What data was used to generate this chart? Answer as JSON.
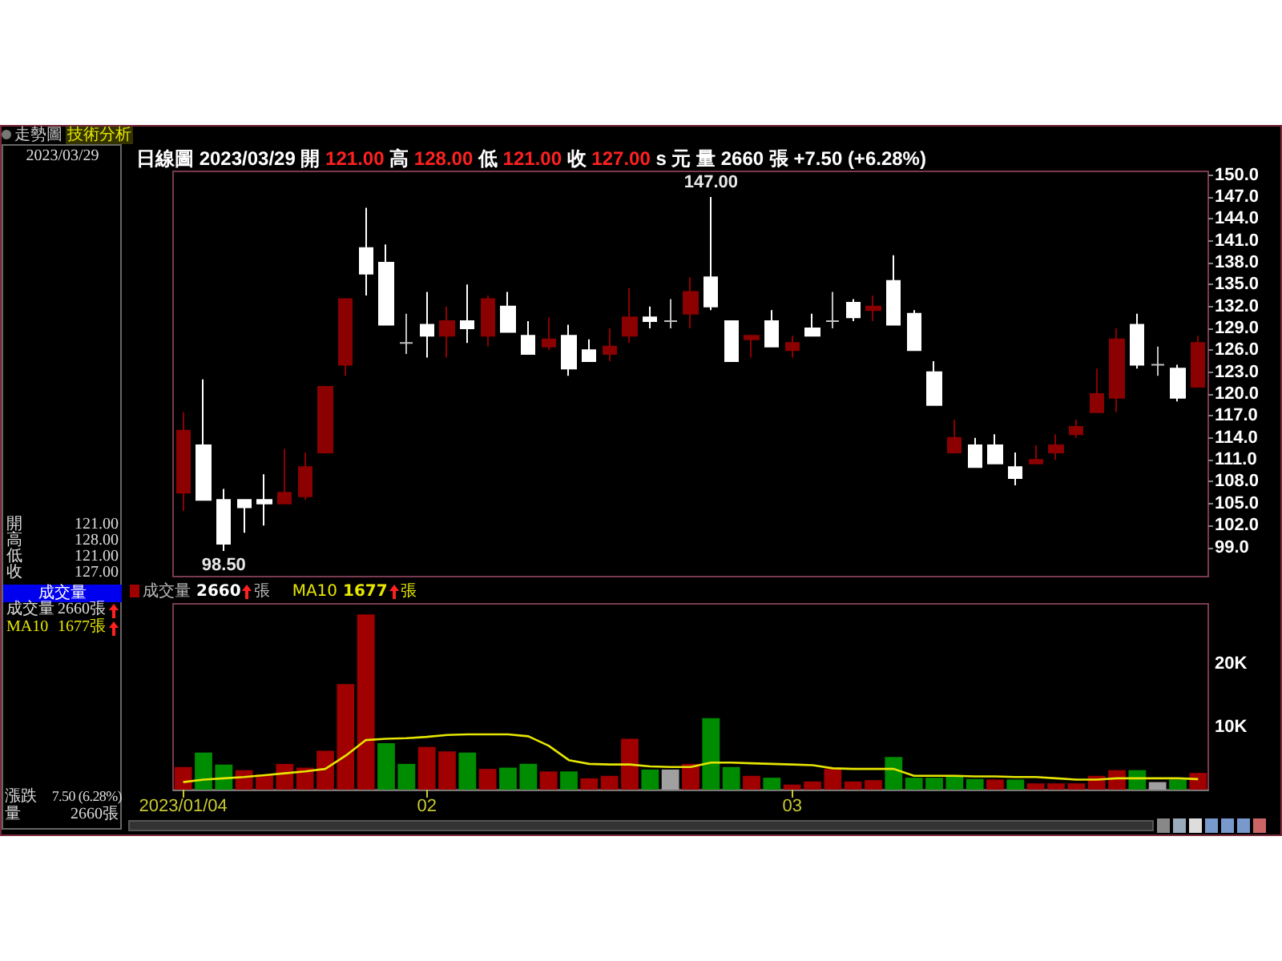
{
  "chart_data": [
    {
      "type": "candlestick",
      "title": "日線圖 2023/03/29 開 121.00 高 128.00 低 121.00 收 127.00 s 元 量 2660 張 +7.50 (+6.28%)",
      "categories": [
        "2023/01/04",
        null,
        null,
        null,
        null,
        null,
        null,
        null,
        null,
        null,
        null,
        null,
        "02",
        null,
        null,
        null,
        null,
        null,
        null,
        null,
        null,
        null,
        null,
        null,
        null,
        null,
        null,
        null,
        null,
        null,
        "03",
        null,
        null,
        null,
        null,
        null,
        null,
        null,
        null,
        null,
        null,
        null,
        null,
        null,
        null,
        null,
        null,
        null,
        null,
        null,
        null
      ],
      "ohlc": [
        [
          106.5,
          117.5,
          104,
          115
        ],
        [
          113,
          122,
          105.5,
          105.5
        ],
        [
          105.5,
          107,
          98.5,
          99.5
        ],
        [
          105.5,
          105.5,
          101,
          104.5
        ],
        [
          105.5,
          109,
          102,
          105
        ],
        [
          105,
          112.5,
          105,
          106.5
        ],
        [
          106,
          112,
          105.5,
          110
        ],
        [
          112,
          121,
          112,
          121
        ],
        [
          124,
          133,
          122.5,
          133
        ],
        [
          140,
          145.5,
          133.5,
          136.5
        ],
        [
          138,
          140.5,
          129.5,
          129.5
        ],
        [
          127,
          131,
          125.5,
          127
        ],
        [
          129.5,
          134,
          125,
          128
        ],
        [
          128,
          132,
          125,
          130
        ],
        [
          130,
          135,
          127,
          129
        ],
        [
          128,
          133.5,
          126.5,
          133
        ],
        [
          132,
          134,
          128.5,
          128.5
        ],
        [
          128,
          130,
          125.5,
          125.5
        ],
        [
          126.5,
          130.5,
          126,
          127.5
        ],
        [
          128,
          129.5,
          122.5,
          123.5
        ],
        [
          126,
          127.5,
          124.5,
          124.5
        ],
        [
          125.5,
          129,
          124.5,
          126.5
        ],
        [
          128,
          134.5,
          127,
          130.5
        ],
        [
          130.5,
          132,
          129,
          130
        ],
        [
          130,
          133,
          129,
          130
        ],
        [
          131,
          136,
          129,
          134
        ],
        [
          136,
          147,
          131.5,
          132
        ],
        [
          130,
          130,
          124.5,
          124.5
        ],
        [
          127.5,
          128,
          125,
          128
        ],
        [
          130,
          131.5,
          126.5,
          126.5
        ],
        [
          126,
          128,
          125,
          127
        ],
        [
          129,
          131,
          128,
          128
        ],
        [
          130,
          134,
          129,
          130
        ],
        [
          132.5,
          133,
          130,
          130.5
        ],
        [
          131.5,
          133.5,
          130,
          132
        ],
        [
          135.5,
          139,
          129.5,
          129.5
        ],
        [
          131,
          131.5,
          126,
          126
        ],
        [
          123,
          124.5,
          118.5,
          118.5
        ],
        [
          112,
          116.5,
          112,
          114
        ],
        [
          113,
          114,
          110,
          110
        ],
        [
          113,
          114.5,
          110.5,
          110.5
        ],
        [
          110,
          112,
          107.5,
          108.5
        ],
        [
          110.5,
          113,
          110.5,
          111
        ],
        [
          112,
          114.5,
          111,
          113
        ],
        [
          114.5,
          116.5,
          114,
          115.5
        ],
        [
          117.5,
          123.5,
          117.5,
          120
        ],
        [
          119.5,
          129,
          117.5,
          127.5
        ],
        [
          129.5,
          131,
          123.5,
          124
        ],
        [
          124,
          126.5,
          122.5,
          124
        ],
        [
          123.5,
          124,
          119,
          119.5
        ],
        [
          121,
          128,
          121,
          127
        ]
      ],
      "colors": [
        "#8b0000",
        "#ffffff",
        "#ffffff",
        "#ffffff",
        "#ffffff",
        "#8b0000",
        "#8b0000",
        "#8b0000",
        "#8b0000",
        "#ffffff",
        "#ffffff",
        "#c0c0c0",
        "#ffffff",
        "#8b0000",
        "#ffffff",
        "#8b0000",
        "#ffffff",
        "#ffffff",
        "#8b0000",
        "#ffffff",
        "#ffffff",
        "#8b0000",
        "#8b0000",
        "#ffffff",
        "#c0c0c0",
        "#8b0000",
        "#ffffff",
        "#ffffff",
        "#8b0000",
        "#ffffff",
        "#8b0000",
        "#ffffff",
        "#c0c0c0",
        "#ffffff",
        "#8b0000",
        "#ffffff",
        "#ffffff",
        "#ffffff",
        "#8b0000",
        "#ffffff",
        "#ffffff",
        "#ffffff",
        "#8b0000",
        "#8b0000",
        "#8b0000",
        "#8b0000",
        "#8b0000",
        "#ffffff",
        "#c0c0c0",
        "#ffffff",
        "#8b0000"
      ],
      "ylim": [
        95,
        150.5
      ],
      "yticks": [
        {
          "value": 150,
          "label": "150.0"
        },
        {
          "value": 147,
          "label": "147.0"
        },
        {
          "value": 144,
          "label": "144.0"
        },
        {
          "value": 141,
          "label": "141.0"
        },
        {
          "value": 138,
          "label": "138.0"
        },
        {
          "value": 135,
          "label": "135.0"
        },
        {
          "value": 132,
          "label": "132.0"
        },
        {
          "value": 129,
          "label": "129.0"
        },
        {
          "value": 126,
          "label": "126.0"
        },
        {
          "value": 123,
          "label": "123.0"
        },
        {
          "value": 120,
          "label": "120.0"
        },
        {
          "value": 117,
          "label": "117.0"
        },
        {
          "value": 114,
          "label": "114.0"
        },
        {
          "value": 111,
          "label": "111.0"
        },
        {
          "value": 108,
          "label": "108.0"
        },
        {
          "value": 105,
          "label": "105.0"
        },
        {
          "value": 102,
          "label": "102.0"
        },
        {
          "value": 99,
          "label": "99.0"
        }
      ],
      "tick_labels": "y",
      "annotations": [
        {
          "text": "147.00",
          "y": 147
        },
        {
          "text": "98.50",
          "y": 98.5
        }
      ]
    },
    {
      "type": "bar",
      "categories": [
        "2023/01/04",
        null,
        null,
        null,
        null,
        null,
        null,
        null,
        null,
        null,
        null,
        null,
        "02",
        null,
        null,
        null,
        null,
        null,
        null,
        null,
        null,
        null,
        null,
        null,
        null,
        null,
        null,
        null,
        null,
        null,
        "03",
        null,
        null,
        null,
        null,
        null,
        null,
        null,
        null,
        null,
        null,
        null,
        null,
        null,
        null,
        null,
        null,
        null,
        null,
        null,
        null
      ],
      "series": [
        {
          "name": "成交量",
          "type": "bar",
          "values": [
            3600,
            5900,
            4000,
            3100,
            2400,
            4100,
            3500,
            6200,
            16800,
            27900,
            7400,
            4100,
            6800,
            6100,
            5900,
            3300,
            3500,
            4100,
            2900,
            2900,
            1800,
            2200,
            8100,
            3200,
            3200,
            4100,
            11400,
            3600,
            2200,
            1900,
            800,
            1300,
            3300,
            1300,
            1500,
            5200,
            1900,
            1900,
            2300,
            1700,
            1600,
            1600,
            1000,
            1000,
            1000,
            2200,
            3100,
            3100,
            1200,
            1600,
            2660
          ],
          "colors": [
            "#a00000",
            "#008c00",
            "#008c00",
            "#a00000",
            "#a00000",
            "#a00000",
            "#a00000",
            "#a00000",
            "#a00000",
            "#a00000",
            "#008c00",
            "#008c00",
            "#a00000",
            "#a00000",
            "#008c00",
            "#a00000",
            "#008c00",
            "#008c00",
            "#a00000",
            "#008c00",
            "#a00000",
            "#a00000",
            "#a00000",
            "#008c00",
            "#a0a0a0",
            "#a00000",
            "#008c00",
            "#008c00",
            "#a00000",
            "#008c00",
            "#a00000",
            "#a00000",
            "#a00000",
            "#a00000",
            "#a00000",
            "#008c00",
            "#008c00",
            "#008c00",
            "#008c00",
            "#008c00",
            "#a00000",
            "#008c00",
            "#a00000",
            "#a00000",
            "#a00000",
            "#a00000",
            "#a00000",
            "#008c00",
            "#a0a0a0",
            "#008c00",
            "#a00000"
          ]
        },
        {
          "name": "MA10",
          "type": "line",
          "color": "#e6e600",
          "values": [
            1200,
            1600,
            1800,
            2000,
            2300,
            2600,
            2900,
            3300,
            5400,
            7900,
            8100,
            8200,
            8400,
            8700,
            8800,
            8800,
            8800,
            8500,
            7000,
            4700,
            4100,
            4000,
            4000,
            3700,
            3600,
            3600,
            4300,
            4300,
            4200,
            4100,
            4000,
            3900,
            3400,
            3300,
            3300,
            3300,
            2200,
            2200,
            2200,
            2100,
            2100,
            2000,
            2000,
            1800,
            1600,
            1600,
            1800,
            1800,
            1800,
            1800,
            1677
          ]
        }
      ],
      "ylim": [
        0,
        29600
      ],
      "yticks": [
        {
          "value": 10000,
          "label": "10K"
        },
        {
          "value": 20000,
          "label": "20K"
        }
      ],
      "annotations": [
        "2660",
        "張",
        "1677",
        "張"
      ]
    },
    {
      "type": "other",
      "annotations": [
        "走勢圖",
        "技術分析",
        "2023/03/29",
        "開",
        "121.00",
        "高",
        "128.00",
        "低",
        "121.00",
        "收",
        "127.00",
        "成交量",
        "成交量",
        "2660張",
        "MA10",
        "1677張",
        "漲跌",
        "7.50 (6.28%)",
        "量",
        "2660張"
      ]
    }
  ]
}
